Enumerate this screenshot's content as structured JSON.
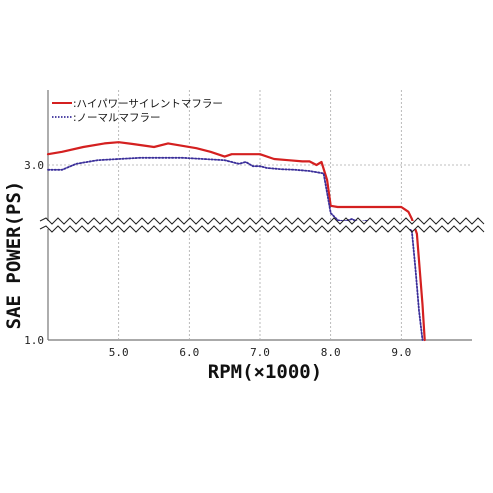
{
  "chart_data": {
    "type": "line",
    "title": "",
    "xlabel": "RPM(×1000)",
    "ylabel": "SAE POWER(PS)",
    "x_ticks": [
      "5.0",
      "6.0",
      "7.0",
      "8.0",
      "9.0"
    ],
    "y_ticks": [
      "3.0",
      "1.0"
    ],
    "xlim": [
      4.0,
      10.0
    ],
    "axis_break": "between 3.0 and 1.0 on the y-axis",
    "grid": "dotted",
    "legend_position": "top-left",
    "colors": {
      "series_1": "#d42020",
      "series_2": "#3a2e9a"
    },
    "series": [
      {
        "name": ":ハイパワーサイレントマフラー",
        "style": "solid",
        "x": [
          4.0,
          4.2,
          4.5,
          4.8,
          5.0,
          5.2,
          5.5,
          5.7,
          5.9,
          6.1,
          6.3,
          6.5,
          6.6,
          6.8,
          7.0,
          7.2,
          7.4,
          7.6,
          7.7,
          7.8,
          7.87,
          7.95,
          8.0,
          8.1,
          8.5,
          9.0,
          9.05,
          9.1,
          9.15,
          9.22,
          9.3,
          9.33
        ],
        "y": [
          3.18,
          3.22,
          3.3,
          3.36,
          3.38,
          3.35,
          3.3,
          3.36,
          3.32,
          3.28,
          3.22,
          3.14,
          3.18,
          3.18,
          3.18,
          3.1,
          3.08,
          3.06,
          3.06,
          3.0,
          3.05,
          2.75,
          2.32,
          2.3,
          2.3,
          2.3,
          2.26,
          2.22,
          2.1,
          1.9,
          1.3,
          1.0
        ]
      },
      {
        "name": ":ノーマルマフラー",
        "style": "dotted",
        "x": [
          4.0,
          4.2,
          4.4,
          4.7,
          5.0,
          5.3,
          5.6,
          5.9,
          6.2,
          6.5,
          6.7,
          6.8,
          6.9,
          7.0,
          7.1,
          7.3,
          7.5,
          7.7,
          7.8,
          7.9,
          8.0,
          8.1,
          8.2,
          8.3,
          8.4,
          8.5,
          8.6,
          8.7,
          8.8,
          8.9,
          9.0,
          9.1,
          9.15,
          9.2,
          9.25,
          9.3
        ],
        "y": [
          2.92,
          2.92,
          3.02,
          3.08,
          3.1,
          3.12,
          3.12,
          3.12,
          3.1,
          3.08,
          3.02,
          3.05,
          2.98,
          2.98,
          2.95,
          2.93,
          2.92,
          2.9,
          2.88,
          2.86,
          2.2,
          2.08,
          2.06,
          2.1,
          2.04,
          2.07,
          2.03,
          1.98,
          2.0,
          1.98,
          1.96,
          1.98,
          1.92,
          1.6,
          1.25,
          1.0
        ]
      }
    ]
  }
}
